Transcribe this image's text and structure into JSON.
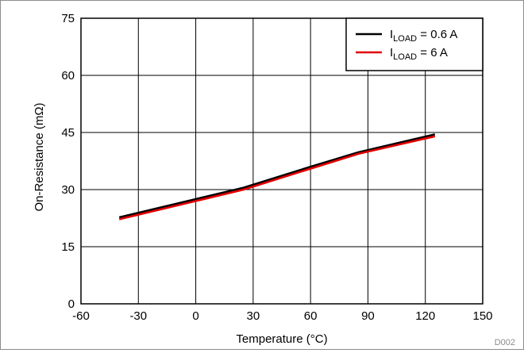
{
  "chart_data": {
    "type": "line",
    "xlabel": "Temperature (°C)",
    "ylabel": "On-Resistance (mΩ)",
    "xlim": [
      -60,
      150
    ],
    "ylim": [
      0,
      75
    ],
    "xticks": [
      -60,
      -30,
      0,
      30,
      60,
      90,
      120,
      150
    ],
    "yticks": [
      0,
      15,
      30,
      45,
      60,
      75
    ],
    "grid": true,
    "legend_position": "top-right",
    "series": [
      {
        "name": "I_LOAD = 0.6 A",
        "label_main": "I",
        "label_sub": "LOAD",
        "label_rest": " = 0.6 A",
        "color": "#000000",
        "x": [
          -40,
          0,
          25,
          60,
          85,
          125
        ],
        "y": [
          22.7,
          27.5,
          30.5,
          36.0,
          39.8,
          44.5
        ]
      },
      {
        "name": "I_LOAD = 6 A",
        "label_main": "I",
        "label_sub": "LOAD",
        "label_rest": " = 6 A",
        "color": "#e00000",
        "x": [
          -40,
          0,
          25,
          60,
          85,
          125
        ],
        "y": [
          22.2,
          27.0,
          30.0,
          35.5,
          39.4,
          44.0
        ]
      }
    ],
    "figure_code": "D002"
  }
}
